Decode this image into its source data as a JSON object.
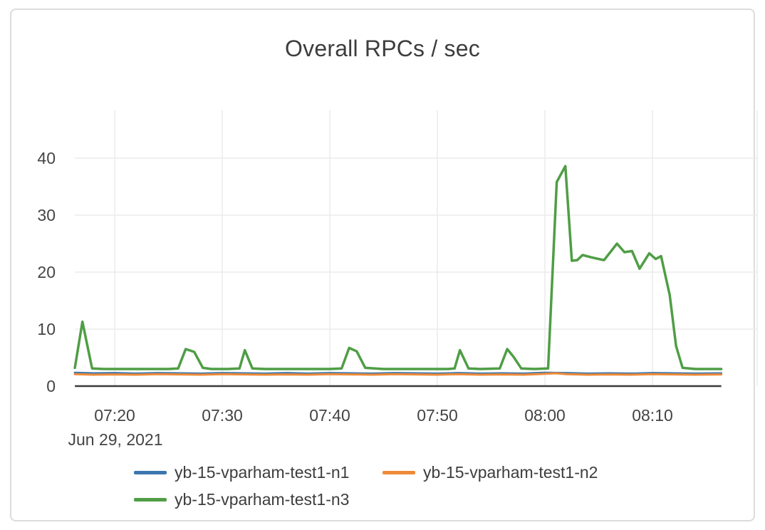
{
  "chart": {
    "title": "Overall RPCs / sec",
    "date_label": "Jun 29, 2021"
  },
  "chart_data": {
    "type": "line",
    "title": "Overall RPCs / sec",
    "xlabel": "",
    "ylabel": "",
    "x_unit": "time of day (minutes after 07:00), Jun 29, 2021",
    "grid": true,
    "legend_position": "bottom",
    "x_axis": {
      "date_label": "Jun 29, 2021",
      "ticks": [
        {
          "minutes": 20,
          "label": "07:20"
        },
        {
          "minutes": 30,
          "label": "07:30"
        },
        {
          "minutes": 40,
          "label": "07:40"
        },
        {
          "minutes": 50,
          "label": "07:50"
        },
        {
          "minutes": 60,
          "label": "08:00"
        },
        {
          "minutes": 70,
          "label": "08:10"
        }
      ],
      "range_minutes": [
        16.3,
        79.7
      ]
    },
    "y_axis": {
      "ticks": [
        {
          "value": 0,
          "label": "0"
        },
        {
          "value": 10,
          "label": "10"
        },
        {
          "value": 20,
          "label": "20"
        },
        {
          "value": 30,
          "label": "30"
        },
        {
          "value": 40,
          "label": "40"
        }
      ],
      "range": [
        0,
        48.4
      ]
    },
    "series": [
      {
        "name": "yb-15-vparham-test1-n1",
        "color": "#3b76af",
        "points": [
          [
            16.3,
            2.35
          ],
          [
            18,
            2.25
          ],
          [
            20,
            2.3
          ],
          [
            22,
            2.2
          ],
          [
            24,
            2.3
          ],
          [
            26,
            2.25
          ],
          [
            28,
            2.2
          ],
          [
            30,
            2.3
          ],
          [
            32,
            2.25
          ],
          [
            34,
            2.2
          ],
          [
            36,
            2.3
          ],
          [
            38,
            2.2
          ],
          [
            40,
            2.3
          ],
          [
            42,
            2.25
          ],
          [
            44,
            2.2
          ],
          [
            46,
            2.3
          ],
          [
            48,
            2.25
          ],
          [
            50,
            2.2
          ],
          [
            52,
            2.3
          ],
          [
            54,
            2.2
          ],
          [
            56,
            2.25
          ],
          [
            58,
            2.2
          ],
          [
            60,
            2.35
          ],
          [
            62,
            2.3
          ],
          [
            64,
            2.2
          ],
          [
            66,
            2.25
          ],
          [
            68,
            2.2
          ],
          [
            70,
            2.3
          ],
          [
            72,
            2.25
          ],
          [
            74,
            2.2
          ],
          [
            76.4,
            2.25
          ]
        ]
      },
      {
        "name": "yb-15-vparham-test1-n2",
        "color": "#ee8a38",
        "points": [
          [
            16.3,
            2.1
          ],
          [
            18,
            2.0
          ],
          [
            20,
            2.05
          ],
          [
            22,
            2.0
          ],
          [
            24,
            2.1
          ],
          [
            26,
            2.05
          ],
          [
            28,
            2.0
          ],
          [
            30,
            2.1
          ],
          [
            32,
            2.05
          ],
          [
            34,
            2.0
          ],
          [
            36,
            2.05
          ],
          [
            38,
            2.0
          ],
          [
            40,
            2.1
          ],
          [
            42,
            2.05
          ],
          [
            44,
            2.0
          ],
          [
            46,
            2.1
          ],
          [
            48,
            2.05
          ],
          [
            50,
            2.0
          ],
          [
            52,
            2.1
          ],
          [
            54,
            2.0
          ],
          [
            56,
            2.05
          ],
          [
            58,
            2.0
          ],
          [
            60,
            2.15
          ],
          [
            61,
            2.25
          ],
          [
            62,
            2.1
          ],
          [
            64,
            2.0
          ],
          [
            66,
            2.05
          ],
          [
            68,
            2.0
          ],
          [
            70,
            2.1
          ],
          [
            72,
            2.05
          ],
          [
            74,
            2.0
          ],
          [
            76.4,
            2.05
          ]
        ]
      },
      {
        "name": "yb-15-vparham-test1-n3",
        "color": "#4f9e45",
        "points": [
          [
            16.3,
            3.2
          ],
          [
            17.0,
            11.3
          ],
          [
            17.9,
            3.1
          ],
          [
            19,
            3
          ],
          [
            21,
            3
          ],
          [
            23,
            3
          ],
          [
            25,
            3
          ],
          [
            25.9,
            3.1
          ],
          [
            26.6,
            6.5
          ],
          [
            27.4,
            6.0
          ],
          [
            28.2,
            3.2
          ],
          [
            29,
            3
          ],
          [
            30.5,
            3
          ],
          [
            31.6,
            3.1
          ],
          [
            32.1,
            6.3
          ],
          [
            32.8,
            3.1
          ],
          [
            34,
            3
          ],
          [
            36,
            3
          ],
          [
            38,
            3
          ],
          [
            40,
            3
          ],
          [
            41.1,
            3.1
          ],
          [
            41.8,
            6.7
          ],
          [
            42.5,
            6.1
          ],
          [
            43.3,
            3.2
          ],
          [
            45,
            3
          ],
          [
            47,
            3
          ],
          [
            49,
            3
          ],
          [
            51,
            3
          ],
          [
            51.6,
            3.1
          ],
          [
            52.1,
            6.3
          ],
          [
            52.9,
            3.1
          ],
          [
            54,
            3
          ],
          [
            55.8,
            3.1
          ],
          [
            56.5,
            6.5
          ],
          [
            57.1,
            5.1
          ],
          [
            57.8,
            3.1
          ],
          [
            59,
            3
          ],
          [
            60.3,
            3.1
          ],
          [
            61.1,
            35.8
          ],
          [
            61.9,
            38.6
          ],
          [
            62.5,
            22.0
          ],
          [
            63.0,
            22.1
          ],
          [
            63.5,
            23.0
          ],
          [
            64.3,
            22.6
          ],
          [
            65.5,
            22.1
          ],
          [
            66.7,
            25.0
          ],
          [
            67.4,
            23.5
          ],
          [
            68.1,
            23.7
          ],
          [
            68.8,
            20.6
          ],
          [
            69.7,
            23.3
          ],
          [
            70.3,
            22.3
          ],
          [
            70.8,
            22.8
          ],
          [
            71.6,
            16.0
          ],
          [
            72.2,
            7.0
          ],
          [
            72.8,
            3.2
          ],
          [
            74,
            3
          ],
          [
            75.5,
            3
          ],
          [
            76.4,
            3
          ]
        ]
      }
    ]
  }
}
